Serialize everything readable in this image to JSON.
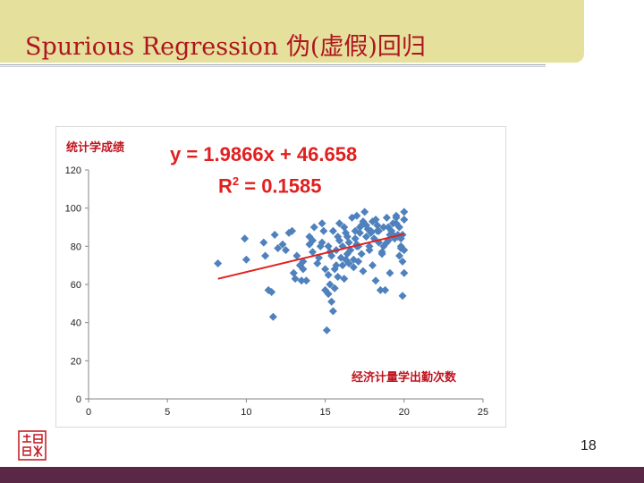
{
  "slide": {
    "title": "Spurious Regression 伪(虚假)回归",
    "page_number": "18"
  },
  "colors": {
    "title_band": "#e5e19c",
    "title_text": "#b01420",
    "marker": "#4f81bd",
    "trendline": "#e02020",
    "footer": "#5a2846"
  },
  "annotations": {
    "equation": "y = 1.9866x + 46.658",
    "rsq_prefix": "R",
    "rsq_sup": "2",
    "rsq_suffix": " = 0.1585"
  },
  "chart_data": {
    "type": "scatter",
    "ylabel": "统计学成绩",
    "xlabel": "经济计量学出勤次数",
    "xlim": [
      0,
      25
    ],
    "ylim": [
      0,
      120
    ],
    "xticks": [
      "0",
      "5",
      "10",
      "15",
      "20",
      "25"
    ],
    "yticks": [
      "0",
      "20",
      "40",
      "60",
      "80",
      "100",
      "120"
    ],
    "marker": "diamond",
    "trendline": {
      "slope": 1.9866,
      "intercept": 46.658,
      "from_x": 8.2,
      "to_x": 20
    },
    "x": [
      8.2,
      9.9,
      10.0,
      11.1,
      11.2,
      11.4,
      11.6,
      11.7,
      11.8,
      12.0,
      12.3,
      12.5,
      12.7,
      12.9,
      13.0,
      13.1,
      13.2,
      13.4,
      13.5,
      13.6,
      13.8,
      14.0,
      14.0,
      14.2,
      14.3,
      14.5,
      14.6,
      14.8,
      14.9,
      15.0,
      15.1,
      15.2,
      15.2,
      15.3,
      15.4,
      15.5,
      15.6,
      15.7,
      15.8,
      15.9,
      16.0,
      16.1,
      16.2,
      16.3,
      16.4,
      16.5,
      16.6,
      16.7,
      16.8,
      16.9,
      17.0,
      17.0,
      17.1,
      17.2,
      17.3,
      17.4,
      17.5,
      17.6,
      17.7,
      17.8,
      17.9,
      18.0,
      18.0,
      18.1,
      18.2,
      18.3,
      18.4,
      18.5,
      18.6,
      18.7,
      18.8,
      18.9,
      19.0,
      19.1,
      19.2,
      19.3,
      19.4,
      19.5,
      19.6,
      19.7,
      19.8,
      19.9,
      20.0,
      20.0,
      20.0,
      19.9,
      19.8,
      19.7,
      19.6,
      19.5,
      15.2,
      15.4,
      15.5,
      15.6,
      16.2,
      16.5,
      17.0,
      17.2,
      17.4,
      18.6,
      19.0,
      19.9,
      15.3,
      15.8,
      16.9,
      17.6,
      18.2,
      18.9,
      19.3,
      16.1,
      16.8,
      17.8,
      18.4,
      15.0,
      14.2,
      13.6,
      14.8,
      15.9,
      16.4,
      17.1,
      17.9,
      18.7,
      19.5,
      19.8,
      20.0,
      16.3,
      17.3,
      18.3,
      19.1,
      15.7,
      14.7
    ],
    "y": [
      71,
      84,
      73,
      82,
      75,
      57,
      56,
      43,
      86,
      79,
      81,
      78,
      87,
      88,
      66,
      63,
      75,
      70,
      62,
      68,
      62,
      85,
      81,
      83,
      90,
      71,
      74,
      92,
      88,
      68,
      36,
      55,
      80,
      60,
      51,
      46,
      68,
      78,
      85,
      92,
      74,
      80,
      90,
      73,
      85,
      82,
      78,
      95,
      69,
      88,
      96,
      81,
      72,
      90,
      76,
      67,
      98,
      85,
      89,
      80,
      87,
      93,
      70,
      84,
      62,
      91,
      88,
      57,
      76,
      90,
      57,
      95,
      83,
      66,
      88,
      92,
      84,
      96,
      86,
      75,
      80,
      54,
      98,
      94,
      66,
      72,
      79,
      90,
      85,
      95,
      65,
      75,
      88,
      58,
      63,
      71,
      80,
      87,
      93,
      77,
      90,
      86,
      77,
      64,
      84,
      91,
      94,
      82,
      86,
      70,
      73,
      78,
      82,
      57,
      77,
      72,
      82,
      83,
      76,
      80,
      88,
      80,
      92,
      84,
      78,
      87,
      91,
      88,
      86,
      70,
      80
    ]
  }
}
